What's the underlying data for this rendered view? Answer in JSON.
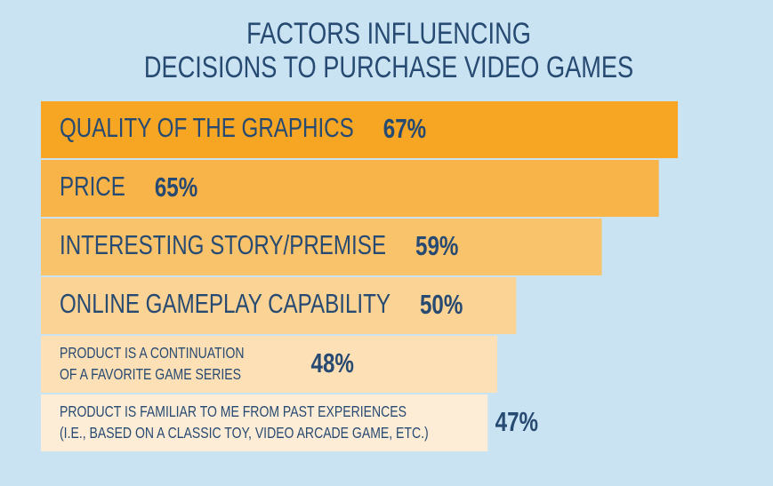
{
  "chart_data": {
    "type": "bar",
    "title": [
      "FACTORS INFLUENCING",
      "DECISIONS TO PURCHASE VIDEO GAMES"
    ],
    "categories": [
      [
        "QUALITY OF THE GRAPHICS"
      ],
      [
        "PRICE"
      ],
      [
        "INTERESTING STORY/PREMISE"
      ],
      [
        "ONLINE GAMEPLAY CAPABILITY"
      ],
      [
        "PRODUCT IS A CONTINUATION",
        "OF A FAVORITE GAME SERIES"
      ],
      [
        "PRODUCT IS FAMILIAR TO ME FROM PAST EXPERIENCES",
        "(I.E., BASED ON A CLASSIC TOY, VIDEO ARCADE GAME, ETC.)"
      ]
    ],
    "values": [
      67,
      65,
      59,
      50,
      48,
      47
    ],
    "value_labels": [
      "67%",
      "65%",
      "59%",
      "50%",
      "48%",
      "47%"
    ],
    "colors": [
      "#f6a623",
      "#f8b449",
      "#f9c36c",
      "#fbd394",
      "#fde0b6",
      "#fdecd6"
    ]
  }
}
